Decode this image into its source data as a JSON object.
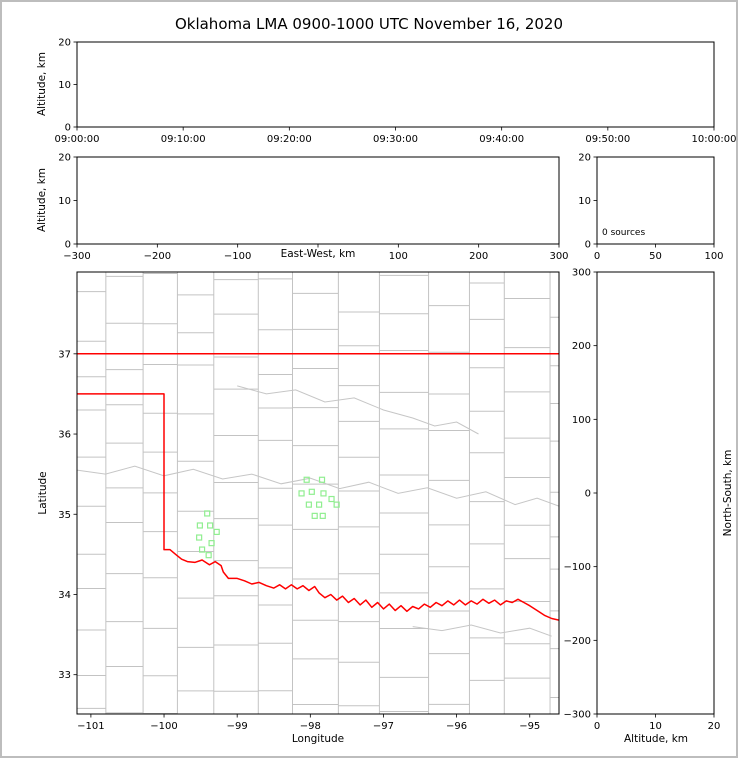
{
  "title": "Oklahoma LMA 0900-1000 UTC November 16, 2020",
  "colors": {
    "state_border": "#ff0000",
    "county_line": "#c3c3c3",
    "river_line": "#c6c6c6",
    "station_marker": "#90EE90",
    "axis": "#000000",
    "background": "#ffffff",
    "page_border": "#bdbdbd"
  },
  "chart_data": [
    {
      "id": "time_height",
      "type": "scatter",
      "xlabel": "",
      "ylabel": "Altitude, km",
      "xlim": [
        0,
        3600
      ],
      "xticks": [
        0,
        600,
        1200,
        1800,
        2400,
        3000,
        3600
      ],
      "xtick_labels": [
        "09:00:00",
        "09:10:00",
        "09:20:00",
        "09:30:00",
        "09:40:00",
        "09:50:00",
        "10:00:00"
      ],
      "ylim": [
        0,
        20
      ],
      "yticks": [
        0,
        10,
        20
      ],
      "ytick_labels": [
        "0",
        "10",
        "20"
      ],
      "points": []
    },
    {
      "id": "ew_height",
      "type": "scatter",
      "xlabel": "East-West, km",
      "ylabel": "Altitude, km",
      "xlim": [
        -300,
        300
      ],
      "xticks": [
        -300,
        -200,
        -100,
        0,
        100,
        200,
        300
      ],
      "xtick_labels": [
        "−300",
        "−200",
        "−100",
        "",
        "100",
        "200",
        "300"
      ],
      "ylim": [
        0,
        20
      ],
      "yticks": [
        0,
        10,
        20
      ],
      "ytick_labels": [
        "0",
        "10",
        "20"
      ],
      "points": []
    },
    {
      "id": "alt_histogram",
      "type": "bar",
      "annotation": "0 sources",
      "xlim": [
        0,
        100
      ],
      "xticks": [
        0,
        50,
        100
      ],
      "xtick_labels": [
        "0",
        "50",
        "100"
      ],
      "ylim": [
        0,
        20
      ],
      "yticks": [
        0,
        10,
        20
      ],
      "ytick_labels": [
        "0",
        "10",
        "20"
      ],
      "values": []
    },
    {
      "id": "plan_view",
      "type": "scatter",
      "xlabel": "Longitude",
      "ylabel": "Latitude",
      "xlim": [
        -101.19,
        -94.6
      ],
      "xticks": [
        -101,
        -100,
        -99,
        -98,
        -97,
        -96,
        -95
      ],
      "xtick_labels": [
        "−101",
        "−100",
        "−99",
        "−98",
        "−97",
        "−96",
        "−95"
      ],
      "ylim": [
        32.51,
        38.02
      ],
      "yticks": [
        33,
        34,
        35,
        36,
        37
      ],
      "ytick_labels": [
        "33",
        "34",
        "35",
        "36",
        "37"
      ],
      "state_border": [
        [
          [
            -101.19,
            37.0
          ],
          [
            -94.6,
            37.0
          ]
        ],
        [
          [
            -101.19,
            36.5
          ],
          [
            -100.0,
            36.5
          ],
          [
            -100.0,
            34.56
          ],
          [
            -99.92,
            34.56
          ],
          [
            -99.84,
            34.5
          ],
          [
            -99.76,
            34.44
          ],
          [
            -99.68,
            34.41
          ],
          [
            -99.58,
            34.4
          ],
          [
            -99.48,
            34.43
          ],
          [
            -99.38,
            34.37
          ],
          [
            -99.3,
            34.41
          ],
          [
            -99.22,
            34.36
          ],
          [
            -99.19,
            34.28
          ],
          [
            -99.12,
            34.2
          ],
          [
            -99.0,
            34.2
          ],
          [
            -98.9,
            34.17
          ],
          [
            -98.8,
            34.13
          ],
          [
            -98.7,
            34.15
          ],
          [
            -98.6,
            34.11
          ],
          [
            -98.5,
            34.08
          ],
          [
            -98.42,
            34.12
          ],
          [
            -98.34,
            34.07
          ],
          [
            -98.26,
            34.12
          ],
          [
            -98.18,
            34.07
          ],
          [
            -98.1,
            34.11
          ],
          [
            -98.02,
            34.05
          ],
          [
            -97.94,
            34.1
          ],
          [
            -97.88,
            34.02
          ],
          [
            -97.8,
            33.96
          ],
          [
            -97.72,
            34.0
          ],
          [
            -97.64,
            33.93
          ],
          [
            -97.56,
            33.98
          ],
          [
            -97.48,
            33.9
          ],
          [
            -97.4,
            33.95
          ],
          [
            -97.32,
            33.87
          ],
          [
            -97.24,
            33.93
          ],
          [
            -97.16,
            33.84
          ],
          [
            -97.08,
            33.9
          ],
          [
            -97.0,
            33.82
          ],
          [
            -96.92,
            33.88
          ],
          [
            -96.84,
            33.8
          ],
          [
            -96.76,
            33.86
          ],
          [
            -96.68,
            33.79
          ],
          [
            -96.6,
            33.85
          ],
          [
            -96.52,
            33.82
          ],
          [
            -96.44,
            33.88
          ],
          [
            -96.36,
            33.84
          ],
          [
            -96.28,
            33.9
          ],
          [
            -96.2,
            33.86
          ],
          [
            -96.12,
            33.92
          ],
          [
            -96.04,
            33.87
          ],
          [
            -95.96,
            33.93
          ],
          [
            -95.88,
            33.87
          ],
          [
            -95.8,
            33.92
          ],
          [
            -95.72,
            33.88
          ],
          [
            -95.64,
            33.94
          ],
          [
            -95.56,
            33.89
          ],
          [
            -95.48,
            33.93
          ],
          [
            -95.4,
            33.87
          ],
          [
            -95.32,
            33.92
          ],
          [
            -95.24,
            33.9
          ],
          [
            -95.16,
            33.94
          ],
          [
            -95.08,
            33.9
          ],
          [
            -95.0,
            33.86
          ],
          [
            -94.9,
            33.8
          ],
          [
            -94.8,
            33.74
          ],
          [
            -94.7,
            33.7
          ],
          [
            -94.6,
            33.68
          ]
        ]
      ],
      "rivers": [
        [
          [
            -101.19,
            35.55
          ],
          [
            -100.8,
            35.5
          ],
          [
            -100.4,
            35.6
          ],
          [
            -100.0,
            35.48
          ],
          [
            -99.6,
            35.56
          ],
          [
            -99.2,
            35.44
          ],
          [
            -98.8,
            35.5
          ],
          [
            -98.4,
            35.38
          ],
          [
            -98.0,
            35.45
          ],
          [
            -97.6,
            35.32
          ],
          [
            -97.2,
            35.4
          ],
          [
            -96.8,
            35.26
          ],
          [
            -96.4,
            35.33
          ],
          [
            -96.0,
            35.2
          ],
          [
            -95.6,
            35.28
          ],
          [
            -95.2,
            35.12
          ],
          [
            -94.9,
            35.2
          ],
          [
            -94.6,
            35.1
          ]
        ],
        [
          [
            -99.0,
            36.6
          ],
          [
            -98.6,
            36.5
          ],
          [
            -98.2,
            36.55
          ],
          [
            -97.8,
            36.4
          ],
          [
            -97.4,
            36.45
          ],
          [
            -97.0,
            36.3
          ],
          [
            -96.6,
            36.2
          ],
          [
            -96.3,
            36.1
          ],
          [
            -96.0,
            36.15
          ],
          [
            -95.7,
            36.0
          ]
        ],
        [
          [
            -96.6,
            33.6
          ],
          [
            -96.2,
            33.55
          ],
          [
            -95.8,
            33.62
          ],
          [
            -95.4,
            33.52
          ],
          [
            -95.0,
            33.58
          ],
          [
            -94.7,
            33.48
          ]
        ]
      ],
      "stations": [
        [
          -98.05,
          35.43
        ],
        [
          -97.84,
          35.43
        ],
        [
          -97.98,
          35.28
        ],
        [
          -97.82,
          35.26
        ],
        [
          -98.12,
          35.26
        ],
        [
          -98.02,
          35.12
        ],
        [
          -97.88,
          35.12
        ],
        [
          -97.71,
          35.19
        ],
        [
          -97.64,
          35.12
        ],
        [
          -97.94,
          34.98
        ],
        [
          -97.83,
          34.98
        ],
        [
          -99.41,
          35.01
        ],
        [
          -99.51,
          34.86
        ],
        [
          -99.37,
          34.86
        ],
        [
          -99.28,
          34.78
        ],
        [
          -99.52,
          34.71
        ],
        [
          -99.35,
          34.64
        ],
        [
          -99.48,
          34.56
        ],
        [
          -99.39,
          34.49
        ]
      ]
    },
    {
      "id": "ns_height",
      "type": "scatter",
      "xlabel": "Altitude, km",
      "ylabel": "North-South, km",
      "xlim": [
        0,
        20
      ],
      "xticks": [
        0,
        10,
        20
      ],
      "xtick_labels": [
        "0",
        "10",
        "20"
      ],
      "ylim": [
        -300,
        300
      ],
      "yticks": [
        -300,
        -200,
        -100,
        0,
        100,
        200,
        300
      ],
      "ytick_labels": [
        "−300",
        "−200",
        "−100",
        "0",
        "100",
        "200",
        "300"
      ],
      "points": []
    }
  ]
}
